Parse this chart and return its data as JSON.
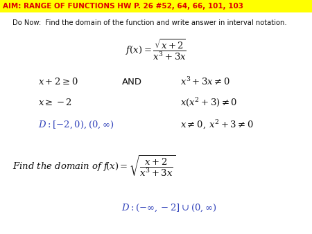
{
  "title_text": "AIM: RANGE OF FUNCTIONS HW P. 26 #52, 64, 66, 101, 103",
  "title_bg": "#FFFF00",
  "title_fontsize": 7.5,
  "title_color": "#DD0000",
  "do_now_text": "Do Now:  Find the domain of the function and write answer in interval notation.",
  "do_now_fontsize": 7.2,
  "math_fontsize": 9.5,
  "and_fontsize": 9.5,
  "blue": "#3344BB",
  "black": "#111111",
  "bg": "#FFFFFF",
  "fig_w": 4.5,
  "fig_h": 3.38,
  "dpi": 100
}
